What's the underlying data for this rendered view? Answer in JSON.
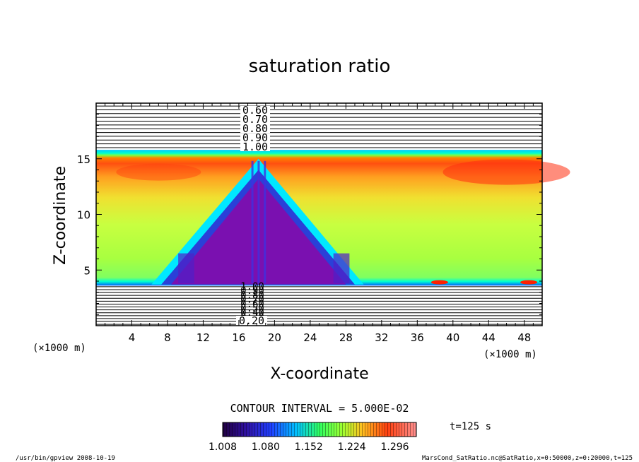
{
  "chart_data": {
    "type": "heatmap",
    "title": "saturation ratio",
    "xlabel": "X-coordinate",
    "ylabel": "Z-coordinate",
    "x_unit": "(×1000 m)",
    "z_unit": "(×1000 m)",
    "xlim": [
      0,
      50
    ],
    "ylim": [
      0,
      20
    ],
    "x_ticks": [
      "4",
      "8",
      "12",
      "16",
      "20",
      "24",
      "28",
      "32",
      "36",
      "40",
      "44",
      "48"
    ],
    "y_ticks": [
      "5",
      "10",
      "15"
    ],
    "upper_contour_labels": [
      "0.60",
      "0.70",
      "0.80",
      "0.90",
      "1.00"
    ],
    "lower_contour_labels": [
      "1.00",
      "0.90",
      "0.80",
      "0.70",
      "0.60",
      "0.50",
      "0.40",
      "0.30",
      "0.20"
    ],
    "contour_interval": "CONTOUR INTERVAL = 5.000E-02",
    "time_label": "t=125 s",
    "colorbar": {
      "range": [
        1.008,
        1.332
      ],
      "tick_labels": [
        "1.008",
        "1.080",
        "1.152",
        "1.224",
        "1.296"
      ]
    },
    "saturated_layer": [
      3.6,
      15.8
    ],
    "footer_left": "/usr/bin/gpview   2008-10-19",
    "footer_right": "MarsCond_SatRatio.nc@SatRatio,x=0:50000,z=0:20000,t=125"
  }
}
